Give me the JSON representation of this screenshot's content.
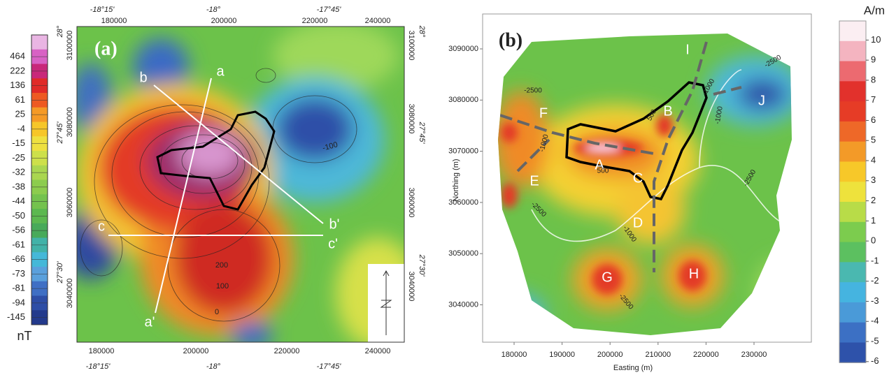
{
  "panel_a": {
    "label": "(a)",
    "unit": "nT",
    "colorbar_labels": [
      464,
      222,
      136,
      61,
      25,
      -4,
      -15,
      -25,
      -32,
      -38,
      -44,
      -50,
      -56,
      -61,
      -66,
      -73,
      -81,
      -94,
      -145
    ],
    "longitude_top": [
      "-18°15'",
      "-18°",
      "-17°45'"
    ],
    "longitude_bottom": [
      "-18°15'",
      "-18°",
      "-17°45'"
    ],
    "easting_top": [
      180000,
      200000,
      220000,
      240000
    ],
    "easting_bottom": [
      180000,
      200000,
      220000,
      240000
    ],
    "northing_left": [
      3100000,
      3080000,
      3060000,
      3040000
    ],
    "northing_right": [
      3100000,
      3080000,
      3060000,
      3040000
    ],
    "latitude_left": [
      "28°",
      "27°45'",
      "27°30'"
    ],
    "latitude_right": [
      "28°",
      "27°45'",
      "27°30'"
    ],
    "profile_labels": [
      "a",
      "a'",
      "b",
      "b'",
      "c",
      "c'"
    ],
    "contour_labels": [
      "-100",
      "200",
      "100",
      "0"
    ]
  },
  "panel_b": {
    "label": "(b)",
    "unit": "A/m",
    "colorbar_ticks": [
      10,
      9,
      8,
      7,
      6,
      5,
      4,
      3,
      2,
      1,
      0,
      -1,
      -2,
      -3,
      -4,
      -5,
      -6
    ],
    "x_axis_title": "Easting (m)",
    "y_axis_title": "Northing (m)",
    "xticks": [
      180000,
      190000,
      200000,
      210000,
      220000,
      230000
    ],
    "yticks": [
      3090000,
      3080000,
      3070000,
      3060000,
      3050000,
      3040000
    ],
    "region_labels": [
      "A",
      "B",
      "C",
      "D",
      "E",
      "F",
      "G",
      "H",
      "I",
      "J"
    ],
    "contour_labels": [
      "-2500",
      "-1000",
      "500",
      "-1000",
      "-2500",
      "-2500",
      "-1000",
      "-2500",
      "-1000",
      "-2500",
      "500"
    ]
  }
}
